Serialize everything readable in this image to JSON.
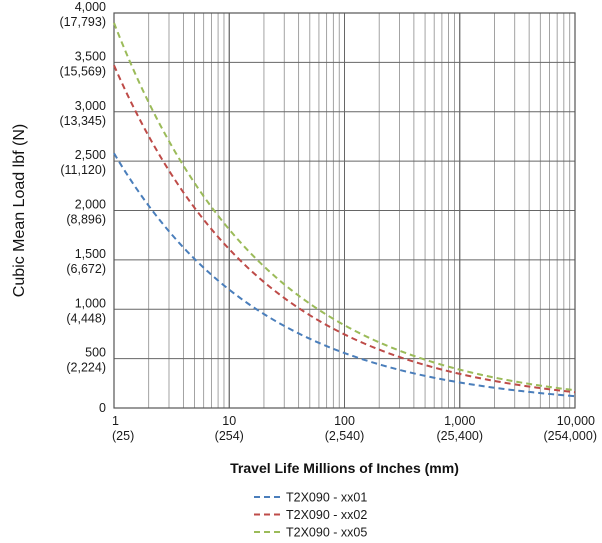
{
  "chart_data": {
    "type": "line",
    "xlabel": "Travel Life Millions of Inches (mm)",
    "ylabel": "Cubic Mean Load lbf (N)",
    "x_scale": "log",
    "xlim": [
      1,
      10000
    ],
    "ylim": [
      0,
      4000
    ],
    "grid": true,
    "legend_position": "bottom-center",
    "x_ticks": [
      {
        "value": 1,
        "label": "1",
        "sublabel": "(25)"
      },
      {
        "value": 10,
        "label": "10",
        "sublabel": "(254)"
      },
      {
        "value": 100,
        "label": "100",
        "sublabel": "(2,540)"
      },
      {
        "value": 1000,
        "label": "1,000",
        "sublabel": "(25,400)"
      },
      {
        "value": 10000,
        "label": "10,000",
        "sublabel": "(254,000)"
      }
    ],
    "y_ticks": [
      {
        "value": 0,
        "label": "0",
        "sublabel": ""
      },
      {
        "value": 500,
        "label": "500",
        "sublabel": "(2,224)"
      },
      {
        "value": 1000,
        "label": "1,000",
        "sublabel": "(4,448)"
      },
      {
        "value": 1500,
        "label": "1,500",
        "sublabel": "(6,672)"
      },
      {
        "value": 2000,
        "label": "2,000",
        "sublabel": "(8,896)"
      },
      {
        "value": 2500,
        "label": "2,500",
        "sublabel": "(11,120)"
      },
      {
        "value": 3000,
        "label": "3,000",
        "sublabel": "(13,345)"
      },
      {
        "value": 3500,
        "label": "3,500",
        "sublabel": "(15,569)"
      },
      {
        "value": 4000,
        "label": "4,000",
        "sublabel": "(17,793)"
      }
    ],
    "series": [
      {
        "name": "T2X090 - xx01",
        "color": "#4a7ebb",
        "x": [
          1,
          2,
          5,
          10,
          20,
          50,
          100,
          200,
          500,
          1000,
          2000,
          5000,
          10000
        ],
        "y": [
          2580,
          2050,
          1510,
          1200,
          950,
          700,
          555,
          440,
          325,
          258,
          205,
          150,
          120
        ]
      },
      {
        "name": "T2X090 - xx02",
        "color": "#be4b48",
        "x": [
          1,
          2,
          5,
          10,
          20,
          50,
          100,
          200,
          500,
          1000,
          2000,
          5000,
          10000
        ],
        "y": [
          3470,
          2760,
          2030,
          1610,
          1280,
          940,
          745,
          590,
          435,
          345,
          275,
          200,
          160
        ]
      },
      {
        "name": "T2X090 - xx05",
        "color": "#9bbb59",
        "x": [
          1,
          2,
          5,
          10,
          20,
          50,
          100,
          200,
          500,
          1000,
          2000,
          5000,
          10000
        ],
        "y": [
          3900,
          3100,
          2280,
          1810,
          1440,
          1060,
          840,
          665,
          490,
          390,
          310,
          225,
          180
        ]
      }
    ]
  }
}
